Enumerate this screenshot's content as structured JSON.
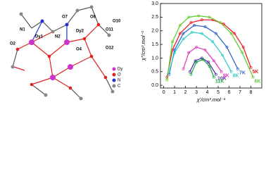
{
  "diagram": {
    "atom_labels": [
      "N1",
      "O7",
      "O8",
      "Dy2",
      "O11",
      "O10",
      "O2",
      "Dy1",
      "N2",
      "O4",
      "O12"
    ],
    "legend": [
      {
        "label": "Dy",
        "color": "#cc33cc"
      },
      {
        "label": "O",
        "color": "#dd2222"
      },
      {
        "label": "N",
        "color": "#2233cc"
      },
      {
        "label": "C",
        "color": "#888888"
      }
    ]
  },
  "chart_data": {
    "type": "line",
    "xlabel": "χ′/cm³.mol⁻¹",
    "ylabel": "χ″/cm³.mol⁻¹",
    "xlim": [
      -0.3,
      9.0
    ],
    "ylim": [
      -0.1,
      3.0
    ],
    "xticks": [
      0,
      1,
      2,
      3,
      4,
      5,
      6,
      7,
      8
    ],
    "yticks": [
      {
        "value": 0,
        "label": "0.0"
      },
      0.5,
      {
        "value": 1,
        "label": "1.0"
      },
      1.5,
      {
        "value": 2,
        "label": "2.0"
      },
      2.5,
      {
        "value": 3,
        "label": "3.0"
      }
    ],
    "series": [
      {
        "name": "5K",
        "color": "#e8202a",
        "x": [
          0.3,
          0.8,
          1.5,
          2.5,
          3.5,
          4.5,
          5.5,
          6.5,
          7.3,
          8.0
        ],
        "values": [
          0.3,
          1.3,
          1.9,
          2.3,
          2.4,
          2.4,
          2.25,
          1.9,
          1.4,
          0.65
        ]
      },
      {
        "name": "6K",
        "color": "#66cc33",
        "x": [
          0.3,
          0.8,
          1.5,
          2.3,
          3.2,
          4.2,
          5.2,
          6.2,
          7.2,
          8.2
        ],
        "values": [
          0.2,
          1.6,
          2.2,
          2.5,
          2.55,
          2.5,
          2.3,
          1.9,
          1.2,
          0.3
        ]
      },
      {
        "name": "7K",
        "color": "#3366cc",
        "x": [
          0.5,
          1.0,
          1.8,
          2.8,
          3.8,
          4.8,
          5.8,
          6.8
        ],
        "values": [
          0.4,
          1.3,
          1.9,
          2.2,
          2.15,
          1.9,
          1.4,
          0.6
        ]
      },
      {
        "name": "8K",
        "color": "#33cccc",
        "x": [
          0.5,
          1.0,
          1.8,
          2.6,
          3.5,
          4.5,
          5.4,
          6.2
        ],
        "values": [
          0.5,
          1.2,
          1.7,
          1.95,
          1.9,
          1.6,
          1.1,
          0.5
        ]
      },
      {
        "name": "9K",
        "color": "#e040c0",
        "x": [
          1.8,
          2.3,
          3.0,
          3.8,
          4.6,
          5.3
        ],
        "values": [
          0.6,
          1.2,
          1.4,
          1.3,
          0.9,
          0.5
        ]
      },
      {
        "name": "10K",
        "color": "#5533aa",
        "x": [
          2.4,
          2.9,
          3.5,
          4.1,
          4.8
        ],
        "values": [
          0.5,
          0.9,
          1.0,
          0.85,
          0.4
        ]
      },
      {
        "name": "11K",
        "color": "#22aa44",
        "x": [
          2.5,
          3.0,
          3.6,
          4.2,
          4.6
        ],
        "values": [
          0.4,
          0.85,
          0.95,
          0.7,
          0.3
        ]
      }
    ]
  }
}
